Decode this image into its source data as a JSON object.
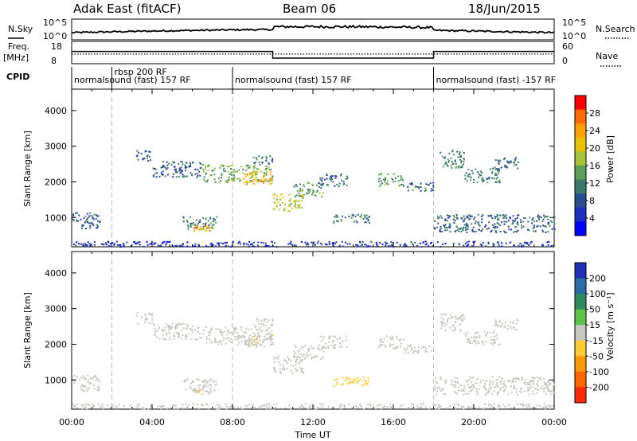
{
  "header": {
    "radar": "Adak East (fitACF)",
    "beam": "Beam 06",
    "date": "18/Jun/2015"
  },
  "summary": {
    "nsky_label": "N.Sky",
    "nsearch_label": "N.Search",
    "freq_label": "Freq.",
    "freq_unit": "[MHz]",
    "nave_label": "Nave",
    "cpid_label": "CPID",
    "noise_ticks": [
      "10^5",
      "10^0"
    ],
    "freq_ticks": [
      "18",
      "8"
    ],
    "nave_ticks": [
      "60",
      "0"
    ],
    "cpid_segments": [
      {
        "label": "normalsound (fast) 157 RF",
        "start": 0.0
      },
      {
        "label": "rbsp 200 RF",
        "start": 2.0
      },
      {
        "label": "normalsound (fast) 157 RF",
        "start": 8.0
      },
      {
        "label": "normalsound (fast) -157 RF",
        "start": 18.0
      }
    ]
  },
  "power_panel": {
    "ylabel": "Slant Range [km]",
    "colorbar_label": "Power [dB]",
    "colorbar_ticks": [
      "28",
      "24",
      "20",
      "16",
      "12",
      "8",
      "4"
    ],
    "colorbar_colors": [
      "#ff0000",
      "#ff6a00",
      "#ff9f00",
      "#e6c200",
      "#a7c43c",
      "#5aa05a",
      "#3a7a6a",
      "#2a4f8f",
      "#1f2fc0",
      "#0000ff"
    ]
  },
  "velocity_panel": {
    "ylabel": "Slant Range [km]",
    "colorbar_label": "Velocity [m s⁻¹]",
    "colorbar_ticks": [
      "200",
      "100",
      "50",
      "15",
      "-15",
      "-50",
      "-100",
      "-200"
    ],
    "colorbar_colors": [
      "#1f2fb8",
      "#2c6aa8",
      "#2e8a5a",
      "#5cc24a",
      "#c8c8c0",
      "#ffcc33",
      "#ff9900",
      "#ff6600",
      "#ff2a00"
    ]
  },
  "xaxis": {
    "label": "Time UT",
    "ticks": [
      "00:00",
      "04:00",
      "08:00",
      "12:00",
      "16:00",
      "20:00",
      "00:00"
    ]
  },
  "chart_data": {
    "type": "heatmap",
    "title": "Adak East (fitACF)",
    "x_unit": "hours UT",
    "xlim": [
      0,
      24
    ],
    "y_axis_label": "Slant Range [km]",
    "ylim": [
      180,
      4600
    ],
    "yticks": [
      1000,
      2000,
      3000,
      4000
    ],
    "gate_lines_hours": [
      2,
      8,
      18
    ],
    "power_db_range": [
      0,
      30
    ],
    "velocity_range": [
      -200,
      200
    ],
    "freq_mhz": [
      {
        "start": 0,
        "end": 10,
        "value": 13.5
      },
      {
        "start": 10,
        "end": 18,
        "value": 10.5
      },
      {
        "start": 18,
        "end": 24,
        "value": 13.5
      }
    ],
    "nave": [
      {
        "start": 0,
        "end": 24,
        "value": 26
      }
    ],
    "echo_regions": [
      {
        "t0": 0.0,
        "t1": 1.5,
        "r0": 900,
        "r1": 1150,
        "power": 8,
        "velocity": 5
      },
      {
        "t0": 0.4,
        "t1": 1.4,
        "r0": 700,
        "r1": 900,
        "power": 6,
        "velocity": 5
      },
      {
        "t0": 5.5,
        "t1": 7.2,
        "r0": 700,
        "r1": 1050,
        "power": 10,
        "velocity": 5
      },
      {
        "t0": 6.0,
        "t1": 6.9,
        "r0": 600,
        "r1": 800,
        "power": 22,
        "velocity": -15
      },
      {
        "t0": 3.2,
        "t1": 4.0,
        "r0": 2600,
        "r1": 2900,
        "power": 8,
        "velocity": 5
      },
      {
        "t0": 4.0,
        "t1": 6.5,
        "r0": 2150,
        "r1": 2600,
        "power": 8,
        "velocity": 5
      },
      {
        "t0": 6.5,
        "t1": 10.0,
        "r0": 2000,
        "r1": 2500,
        "power": 14,
        "velocity": 0
      },
      {
        "t0": 8.5,
        "t1": 10.0,
        "r0": 1950,
        "r1": 2300,
        "power": 22,
        "velocity": -15
      },
      {
        "t0": 9.0,
        "t1": 10.0,
        "r0": 2500,
        "r1": 2750,
        "power": 8,
        "velocity": 5
      },
      {
        "t0": 10.0,
        "t1": 11.5,
        "r0": 1200,
        "r1": 1700,
        "power": 18,
        "velocity": -10
      },
      {
        "t0": 11.0,
        "t1": 12.5,
        "r0": 1600,
        "r1": 2000,
        "power": 12,
        "velocity": 5
      },
      {
        "t0": 12.3,
        "t1": 13.7,
        "r0": 1900,
        "r1": 2250,
        "power": 8,
        "velocity": 5
      },
      {
        "t0": 13.0,
        "t1": 14.8,
        "r0": 850,
        "r1": 1100,
        "power": 10,
        "velocity": -40
      },
      {
        "t0": 15.2,
        "t1": 16.5,
        "r0": 1900,
        "r1": 2250,
        "power": 12,
        "velocity": 5
      },
      {
        "t0": 16.5,
        "t1": 18.0,
        "r0": 1750,
        "r1": 2000,
        "power": 8,
        "velocity": 5
      },
      {
        "t0": 18.3,
        "t1": 19.5,
        "r0": 2400,
        "r1": 2900,
        "power": 10,
        "velocity": 5
      },
      {
        "t0": 19.5,
        "t1": 21.3,
        "r0": 2000,
        "r1": 2400,
        "power": 10,
        "velocity": 5
      },
      {
        "t0": 21.0,
        "t1": 22.2,
        "r0": 2400,
        "r1": 2700,
        "power": 8,
        "velocity": 5
      },
      {
        "t0": 18.0,
        "t1": 24.0,
        "r0": 600,
        "r1": 1100,
        "power": 8,
        "velocity": 5
      },
      {
        "t0": 0.0,
        "t1": 24.0,
        "r0": 200,
        "r1": 350,
        "power": 4,
        "velocity": 5
      }
    ]
  }
}
